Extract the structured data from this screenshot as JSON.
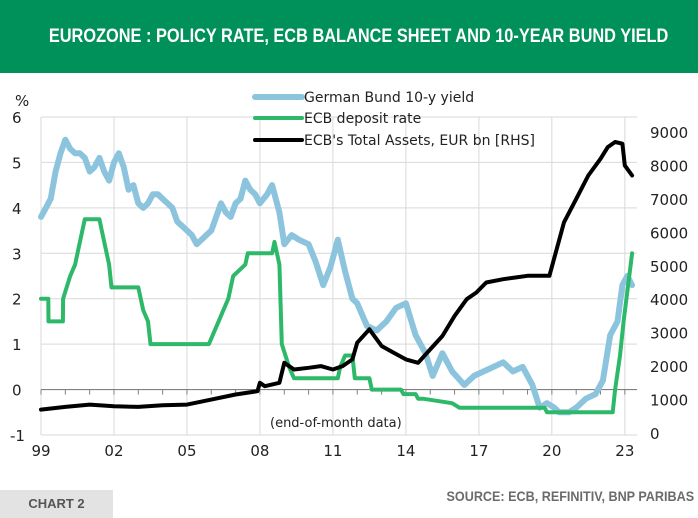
{
  "header": {
    "title": "EUROZONE : POLICY RATE, ECB BALANCE SHEET AND 10-YEAR BUND YIELD"
  },
  "footer": {
    "chart_label": "CHART 2",
    "source": "SOURCE: ECB, REFINITIV, BNP PARIBAS"
  },
  "colors": {
    "header_bg": "#00905a",
    "bund": "#8cc4de",
    "deposit": "#2db86a",
    "assets": "#000000",
    "grid": "#d9d9d9",
    "neg_tick": "#e00000"
  },
  "chart_data": {
    "type": "line",
    "title": "EUROZONE : POLICY RATE, ECB BALANCE SHEET AND 10-YEAR BUND YIELD",
    "ylabel": "%",
    "ylim": [
      -1,
      6
    ],
    "y2lim": [
      0,
      9000
    ],
    "xlim": [
      1999,
      2023.5
    ],
    "yticks": [
      "6",
      "5",
      "4",
      "3",
      "2",
      "1",
      "0",
      "-1"
    ],
    "y2ticks": [
      "9000",
      "8000",
      "7000",
      "6000",
      "5000",
      "4000",
      "3000",
      "2000",
      "1000",
      "0"
    ],
    "xticks": [
      "99",
      "02",
      "05",
      "08",
      "11",
      "14",
      "17",
      "20",
      "23"
    ],
    "annotation": "(end-of-month data)",
    "grid": true,
    "legend_position": "top-center",
    "series": [
      {
        "name": "German Bund 10-y yield",
        "axis": "left",
        "x": [
          1999.0,
          1999.2,
          1999.4,
          1999.6,
          1999.8,
          2000.0,
          2000.2,
          2000.4,
          2000.6,
          2000.8,
          2001.0,
          2001.2,
          2001.4,
          2001.6,
          2001.8,
          2002.0,
          2002.2,
          2002.4,
          2002.6,
          2002.8,
          2003.0,
          2003.2,
          2003.4,
          2003.6,
          2003.8,
          2004.0,
          2004.2,
          2004.4,
          2004.6,
          2004.8,
          2005.0,
          2005.2,
          2005.4,
          2005.6,
          2005.8,
          2006.0,
          2006.2,
          2006.4,
          2006.6,
          2006.8,
          2007.0,
          2007.2,
          2007.4,
          2007.6,
          2007.8,
          2008.0,
          2008.3,
          2008.5,
          2008.8,
          2009.0,
          2009.3,
          2009.6,
          2010.0,
          2010.3,
          2010.6,
          2010.9,
          2011.2,
          2011.5,
          2011.8,
          2012.0,
          2012.4,
          2012.8,
          2013.2,
          2013.6,
          2014.0,
          2014.4,
          2014.8,
          2015.1,
          2015.5,
          2015.9,
          2016.4,
          2016.8,
          2017.2,
          2017.6,
          2018.0,
          2018.4,
          2018.8,
          2019.2,
          2019.5,
          2019.8,
          2020.1,
          2020.3,
          2020.7,
          2021.0,
          2021.4,
          2021.8,
          2022.1,
          2022.4,
          2022.7,
          2022.9,
          2023.1,
          2023.3
        ],
        "values": [
          3.8,
          4.0,
          4.2,
          4.8,
          5.2,
          5.5,
          5.3,
          5.2,
          5.2,
          5.1,
          4.8,
          4.9,
          5.1,
          4.8,
          4.6,
          5.0,
          5.2,
          4.9,
          4.4,
          4.5,
          4.1,
          4.0,
          4.1,
          4.3,
          4.3,
          4.2,
          4.1,
          4.0,
          3.7,
          3.6,
          3.5,
          3.4,
          3.2,
          3.3,
          3.4,
          3.5,
          3.8,
          4.1,
          3.9,
          3.8,
          4.1,
          4.2,
          4.6,
          4.4,
          4.3,
          4.1,
          4.3,
          4.5,
          3.9,
          3.2,
          3.4,
          3.3,
          3.2,
          2.8,
          2.3,
          2.7,
          3.3,
          2.6,
          2.0,
          1.9,
          1.4,
          1.3,
          1.5,
          1.8,
          1.9,
          1.2,
          0.8,
          0.3,
          0.8,
          0.4,
          0.1,
          0.3,
          0.4,
          0.5,
          0.6,
          0.4,
          0.5,
          0.1,
          -0.4,
          -0.3,
          -0.4,
          -0.5,
          -0.5,
          -0.4,
          -0.2,
          -0.1,
          0.2,
          1.2,
          1.5,
          2.3,
          2.5,
          2.3
        ]
      },
      {
        "name": "ECB deposit rate",
        "axis": "left",
        "x": [
          1999.0,
          1999.3,
          1999.31,
          1999.9,
          1999.91,
          2000.2,
          2000.4,
          2000.6,
          2000.8,
          2001.4,
          2001.5,
          2001.8,
          2001.9,
          2003.0,
          2003.2,
          2003.4,
          2003.5,
          2005.9,
          2006.1,
          2006.3,
          2006.5,
          2006.7,
          2006.9,
          2007.4,
          2007.5,
          2008.5,
          2008.6,
          2008.8,
          2008.9,
          2009.2,
          2009.4,
          2011.2,
          2011.3,
          2011.5,
          2011.8,
          2011.9,
          2012.5,
          2012.6,
          2013.8,
          2013.9,
          2014.4,
          2014.5,
          2014.7,
          2015.9,
          2016.2,
          2019.7,
          2019.8,
          2022.5,
          2022.6,
          2022.8,
          2022.95,
          2023.3
        ],
        "values": [
          2.0,
          2.0,
          1.5,
          1.5,
          2.0,
          2.5,
          2.75,
          3.25,
          3.75,
          3.75,
          3.5,
          2.75,
          2.25,
          2.25,
          1.75,
          1.5,
          1.0,
          1.0,
          1.25,
          1.5,
          1.75,
          2.0,
          2.5,
          2.75,
          3.0,
          3.0,
          3.25,
          2.75,
          1.0,
          0.5,
          0.25,
          0.25,
          0.5,
          0.75,
          0.75,
          0.25,
          0.25,
          0.0,
          0.0,
          -0.1,
          -0.1,
          -0.2,
          -0.2,
          -0.3,
          -0.4,
          -0.4,
          -0.5,
          -0.5,
          0.0,
          0.75,
          1.5,
          3.0
        ]
      },
      {
        "name": "ECB's Total Assets, EUR bn [RHS]",
        "axis": "right",
        "x": [
          1999.0,
          2000.0,
          2001.0,
          2002.0,
          2003.0,
          2004.0,
          2005.0,
          2006.0,
          2007.0,
          2007.9,
          2008.0,
          2008.2,
          2008.8,
          2009.0,
          2009.4,
          2010.0,
          2010.5,
          2011.0,
          2011.4,
          2011.8,
          2012.0,
          2012.5,
          2013.0,
          2013.5,
          2014.0,
          2014.5,
          2015.0,
          2015.5,
          2016.0,
          2016.5,
          2016.9,
          2017.3,
          2018.0,
          2018.5,
          2019.0,
          2019.5,
          2019.9,
          2020.2,
          2020.5,
          2021.0,
          2021.5,
          2022.0,
          2022.3,
          2022.6,
          2022.9,
          2023.0,
          2023.3
        ],
        "values": [
          700,
          780,
          850,
          800,
          780,
          830,
          850,
          1000,
          1150,
          1250,
          1500,
          1400,
          1500,
          2100,
          1900,
          1950,
          2000,
          1900,
          2000,
          2200,
          2700,
          3100,
          2600,
          2400,
          2200,
          2100,
          2500,
          2900,
          3500,
          4000,
          4200,
          4500,
          4600,
          4650,
          4700,
          4700,
          4700,
          5500,
          6300,
          7000,
          7700,
          8200,
          8550,
          8700,
          8650,
          8000,
          7700
        ]
      }
    ]
  }
}
